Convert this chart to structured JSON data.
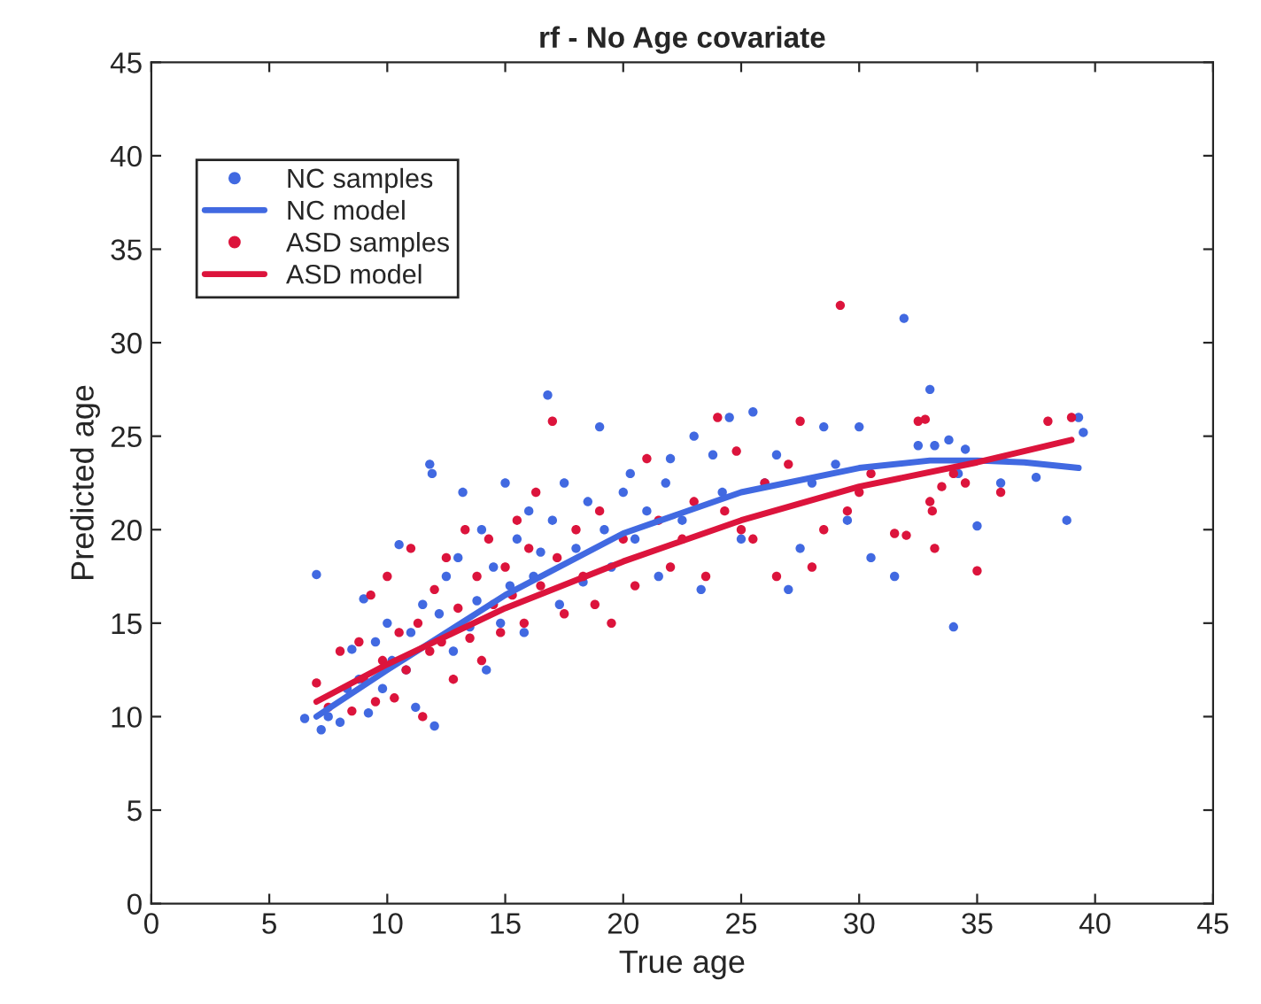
{
  "chart_data": {
    "type": "scatter",
    "title": "rf - No Age covariate",
    "xlabel": "True age",
    "ylabel": "Predicted age",
    "xlim": [
      0,
      45
    ],
    "xticks": [
      0,
      5,
      10,
      15,
      20,
      25,
      30,
      35,
      40,
      45
    ],
    "ylim": [
      0,
      45
    ],
    "yticks": [
      0,
      5,
      10,
      15,
      20,
      25,
      30,
      35,
      40,
      45
    ],
    "grid": false,
    "legend": "top left",
    "series": [
      {
        "name": "NC samples",
        "marker": "circle",
        "color": "#4169e1",
        "x": [
          6.5,
          7.0,
          7.2,
          7.5,
          8.0,
          8.3,
          8.5,
          8.8,
          9.0,
          9.2,
          9.5,
          9.8,
          10.0,
          10.2,
          10.5,
          10.8,
          11.0,
          11.2,
          11.5,
          11.8,
          11.9,
          12.0,
          12.2,
          12.5,
          12.8,
          13.0,
          13.2,
          13.5,
          13.8,
          14.0,
          14.2,
          14.5,
          14.8,
          15.0,
          15.2,
          15.5,
          15.8,
          16.0,
          16.2,
          16.5,
          16.8,
          17.0,
          17.3,
          17.5,
          18.0,
          18.3,
          18.5,
          19.0,
          19.2,
          19.5,
          20.0,
          20.3,
          20.5,
          21.0,
          21.5,
          21.8,
          22.0,
          22.5,
          23.0,
          23.3,
          23.8,
          24.2,
          24.5,
          25.0,
          25.5,
          26.0,
          26.5,
          27.0,
          27.5,
          28.0,
          28.5,
          29.0,
          29.5,
          30.0,
          30.5,
          31.5,
          31.9,
          32.5,
          33.0,
          33.2,
          33.8,
          34.0,
          34.2,
          34.5,
          35.0,
          36.0,
          37.5,
          38.8,
          39.3,
          39.5
        ],
        "values": [
          9.9,
          17.6,
          9.3,
          10.0,
          9.7,
          11.5,
          13.6,
          12.0,
          16.3,
          10.2,
          14.0,
          11.5,
          15.0,
          13.0,
          19.2,
          12.5,
          14.5,
          10.5,
          16.0,
          23.5,
          23.0,
          9.5,
          15.5,
          17.5,
          13.5,
          18.5,
          22.0,
          14.8,
          16.2,
          20.0,
          12.5,
          18.0,
          15.0,
          22.5,
          17.0,
          19.5,
          14.5,
          21.0,
          17.5,
          18.8,
          27.2,
          20.5,
          16.0,
          22.5,
          19.0,
          17.2,
          21.5,
          25.5,
          20.0,
          18.0,
          22.0,
          23.0,
          19.5,
          21.0,
          17.5,
          22.5,
          23.8,
          20.5,
          25.0,
          16.8,
          24.0,
          22.0,
          26.0,
          19.5,
          26.3,
          22.5,
          24.0,
          16.8,
          19.0,
          22.5,
          25.5,
          23.5,
          20.5,
          25.5,
          18.5,
          17.5,
          31.3,
          24.5,
          27.5,
          24.5,
          24.8,
          14.8,
          23.0,
          24.3,
          20.2,
          22.5,
          22.8,
          20.5,
          26.0,
          25.2
        ]
      },
      {
        "name": "NC model",
        "type": "line",
        "marker": "none",
        "line_style": "solid",
        "color": "#4169e1",
        "x": [
          7,
          10,
          15,
          20,
          25,
          30,
          33,
          35,
          37,
          39.3
        ],
        "values": [
          10.0,
          12.5,
          16.5,
          19.8,
          22.0,
          23.3,
          23.7,
          23.7,
          23.6,
          23.3
        ]
      },
      {
        "name": "ASD samples",
        "marker": "circle",
        "color": "#dc143c",
        "x": [
          7.0,
          7.5,
          8.0,
          8.5,
          8.8,
          9.0,
          9.3,
          9.5,
          9.8,
          10.0,
          10.3,
          10.5,
          10.8,
          11.0,
          11.3,
          11.5,
          11.8,
          12.0,
          12.3,
          12.5,
          12.8,
          13.0,
          13.3,
          13.5,
          13.8,
          14.0,
          14.3,
          14.5,
          14.8,
          15.0,
          15.3,
          15.5,
          15.8,
          16.0,
          16.3,
          16.5,
          17.0,
          17.2,
          17.5,
          18.0,
          18.3,
          18.8,
          19.0,
          19.5,
          20.0,
          20.5,
          21.0,
          21.5,
          22.0,
          22.5,
          23.0,
          23.5,
          24.0,
          24.3,
          24.8,
          25.0,
          25.5,
          26.0,
          26.5,
          27.0,
          27.5,
          28.0,
          28.5,
          29.2,
          29.5,
          30.0,
          30.5,
          31.5,
          32.0,
          32.5,
          32.8,
          33.0,
          33.1,
          33.2,
          33.5,
          34.0,
          34.5,
          35.0,
          36.0,
          38.0,
          39.0
        ],
        "values": [
          11.8,
          10.5,
          13.5,
          10.3,
          14.0,
          12.0,
          16.5,
          10.8,
          13.0,
          17.5,
          11.0,
          14.5,
          12.5,
          19.0,
          15.0,
          10.0,
          13.5,
          16.8,
          14.0,
          18.5,
          12.0,
          15.8,
          20.0,
          14.2,
          17.5,
          13.0,
          19.5,
          16.0,
          14.5,
          18.0,
          16.5,
          20.5,
          15.0,
          19.0,
          22.0,
          17.0,
          25.8,
          18.5,
          15.5,
          20.0,
          17.5,
          16.0,
          21.0,
          15.0,
          19.5,
          17.0,
          23.8,
          20.5,
          18.0,
          19.5,
          21.5,
          17.5,
          26.0,
          21.0,
          24.2,
          20.0,
          19.5,
          22.5,
          17.5,
          23.5,
          25.8,
          18.0,
          20.0,
          32.0,
          21.0,
          22.0,
          23.0,
          19.8,
          19.7,
          25.8,
          25.9,
          21.5,
          21.0,
          19.0,
          22.3,
          23.0,
          22.5,
          17.8,
          22.0,
          25.8,
          26.0
        ]
      },
      {
        "name": "ASD model",
        "type": "line",
        "marker": "none",
        "line_style": "solid",
        "color": "#dc143c",
        "x": [
          7,
          10,
          15,
          20,
          25,
          30,
          35,
          39
        ],
        "values": [
          10.8,
          12.8,
          15.8,
          18.3,
          20.5,
          22.3,
          23.6,
          24.8
        ]
      }
    ]
  }
}
